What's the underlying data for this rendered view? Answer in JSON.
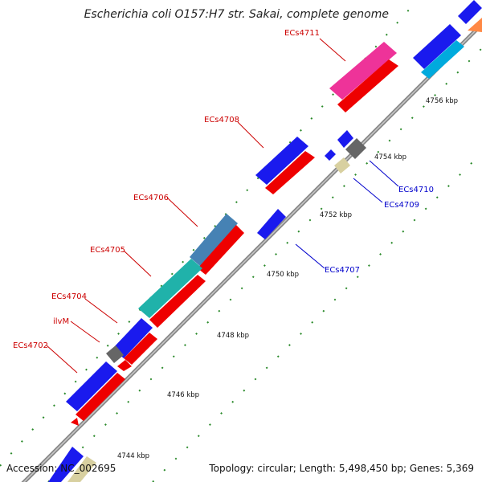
{
  "title": "Escherichia coli O157:H7 str. Sakai, complete genome",
  "accession": "Accession: NC_002695",
  "stats": "Topology: circular; Length: 5,498,450 bp; Genes: 5,369",
  "colors": {
    "backbone": "#999999",
    "forward_cds": "#ff0000",
    "forward_gene": "#0000ff",
    "reverse_gene": "#0000ff",
    "label_forward": "#cc0000",
    "label_reverse": "#0000cc",
    "tick": "#228822"
  },
  "scale_labels": [
    "4744 kbp",
    "4746 kbp",
    "4748 kbp",
    "4750 kbp",
    "4752 kbp",
    "4754 kbp",
    "4756 kbp"
  ],
  "forward_labels": [
    "ECs4702",
    "ilvM",
    "ECs4704",
    "ECs4705",
    "ECs4706",
    "ECs4708",
    "ECs4711"
  ],
  "reverse_labels": [
    "ECs4707",
    "ECs4709",
    "ECs4710"
  ]
}
